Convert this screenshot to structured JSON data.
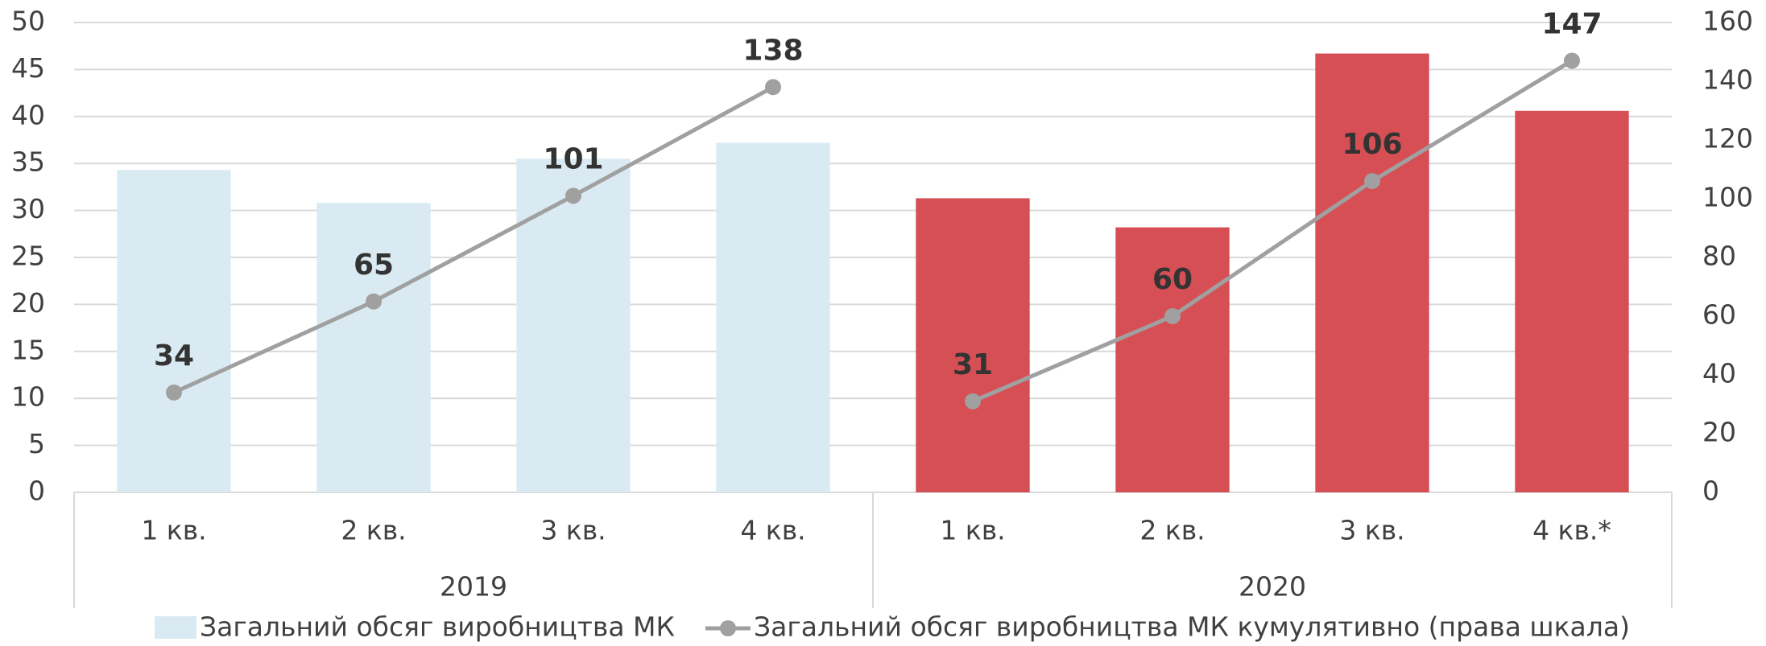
{
  "chart_data": {
    "type": "bar-line",
    "categories": [
      "1 кв.",
      "2 кв.",
      "3 кв.",
      "4 кв.",
      "1 кв.",
      "2 кв.",
      "3 кв.",
      "4 кв.*"
    ],
    "groups": [
      "2019",
      "2020"
    ],
    "series": [
      {
        "name": "Загальний обсяг виробництва МК",
        "type": "bar",
        "color": "#daeaf3",
        "colors": [
          "#daeaf3",
          "#daeaf3",
          "#daeaf3",
          "#daeaf3",
          "#d64f55",
          "#d64f55",
          "#d64f55",
          "#d64f55"
        ],
        "values": [
          34.3,
          30.8,
          35.5,
          37.2,
          31.3,
          28.2,
          46.7,
          40.6
        ]
      },
      {
        "name": "Загальний обсяг виробництва МК кумулятивно (права шкала)",
        "type": "line",
        "color": "#a0a0a0",
        "axis": "y2",
        "values": [
          34,
          65,
          101,
          138,
          31,
          60,
          106,
          147
        ]
      }
    ],
    "ylim": [
      0,
      50
    ],
    "yticks": [
      0,
      5,
      10,
      15,
      20,
      25,
      30,
      35,
      40,
      45,
      50
    ],
    "y2lim": [
      0,
      160
    ],
    "y2ticks": [
      0,
      20,
      40,
      60,
      80,
      100,
      120,
      140,
      160
    ],
    "grid": true,
    "legend": "bottom"
  }
}
